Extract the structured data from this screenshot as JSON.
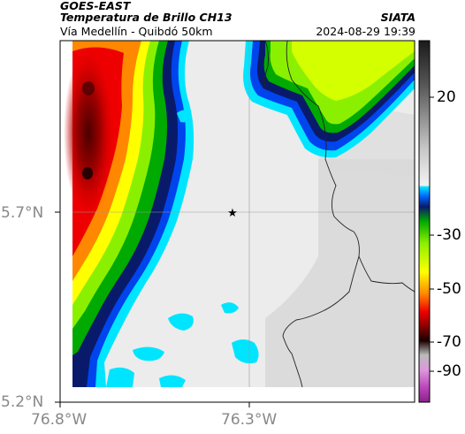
{
  "header": {
    "source": "GOES-EAST",
    "product": "Temperatura de Brillo CH13",
    "subtitle": "Vía Medellín - Quibdó 50km",
    "organization": "SIATA",
    "timestamp": "2024-08-29 19:39"
  },
  "map": {
    "axes": {
      "y_ticks": [
        {
          "label": "5.7°N",
          "value": 5.7
        },
        {
          "label": "5.2°N",
          "value": 5.2
        }
      ],
      "x_ticks": [
        {
          "label": "76.8°W",
          "value": -76.8
        },
        {
          "label": "76.3°W",
          "value": -76.3
        }
      ]
    },
    "marker": {
      "icon": "star-icon"
    }
  },
  "colorbar": {
    "ticks": [
      {
        "label": "20",
        "value": 20
      },
      {
        "label": "-30",
        "value": -30
      },
      {
        "label": "-50",
        "value": -50
      },
      {
        "label": "-70",
        "value": -70
      },
      {
        "label": "-90",
        "value": -90
      }
    ]
  }
}
